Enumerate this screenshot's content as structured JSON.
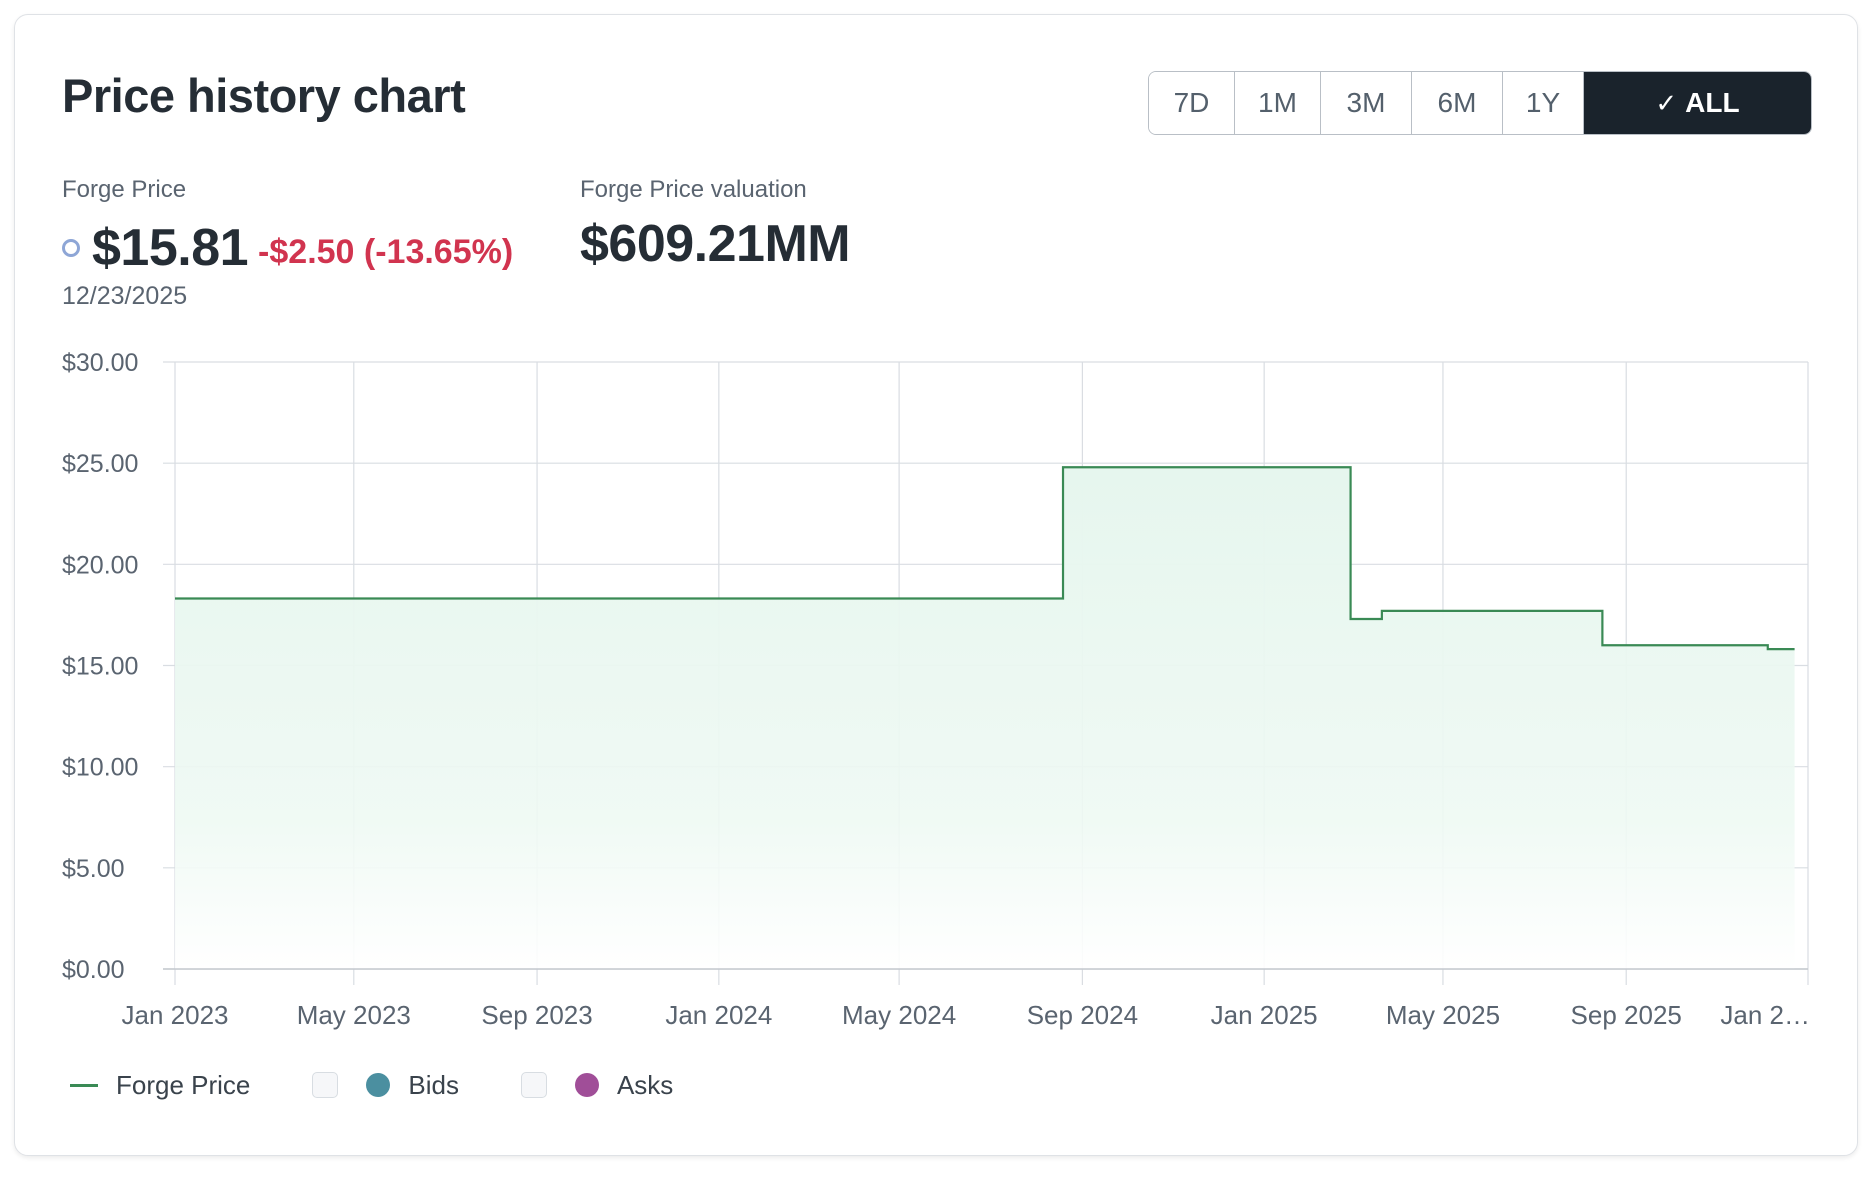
{
  "card": {
    "title": "Price history chart"
  },
  "range_buttons": [
    {
      "label": "7D",
      "active": false
    },
    {
      "label": "1M",
      "active": false
    },
    {
      "label": "3M",
      "active": false
    },
    {
      "label": "6M",
      "active": false
    },
    {
      "label": "1Y",
      "active": false
    },
    {
      "label": "ALL",
      "active": true,
      "icon": "check-icon"
    }
  ],
  "forge_price": {
    "label": "Forge Price",
    "value": "$15.81",
    "change": "-$2.50 (-13.65%)",
    "date": "12/23/2025",
    "marker_color": "#8ea6d6",
    "change_color": "#d1344f"
  },
  "valuation": {
    "label": "Forge Price valuation",
    "value": "$609.21MM"
  },
  "legend": {
    "forge_price": "Forge Price",
    "bids": "Bids",
    "asks": "Asks",
    "bids_color": "#4b8fa0",
    "asks_color": "#a04e98",
    "bids_checked": false,
    "asks_checked": false
  },
  "chart_data": {
    "type": "area",
    "step": true,
    "x_range": [
      "2023-01-01",
      "2025-12-23"
    ],
    "x_ticks": [
      {
        "date": "2023-01-01",
        "label": "Jan 2023"
      },
      {
        "date": "2023-05-01",
        "label": "May 2023"
      },
      {
        "date": "2023-09-01",
        "label": "Sep 2023"
      },
      {
        "date": "2024-01-01",
        "label": "Jan 2024"
      },
      {
        "date": "2024-05-01",
        "label": "May 2024"
      },
      {
        "date": "2024-09-01",
        "label": "Sep 2024"
      },
      {
        "date": "2025-01-01",
        "label": "Jan 2025"
      },
      {
        "date": "2025-05-01",
        "label": "May 2025"
      },
      {
        "date": "2025-09-01",
        "label": "Sep 2025"
      },
      {
        "date": "2026-01-01",
        "label": "Jan 2…"
      }
    ],
    "y_ticks": [
      {
        "value": 0,
        "label": "$0.00"
      },
      {
        "value": 5,
        "label": "$5.00"
      },
      {
        "value": 10,
        "label": "$10.00"
      },
      {
        "value": 15,
        "label": "$15.00"
      },
      {
        "value": 20,
        "label": "$20.00"
      },
      {
        "value": 25,
        "label": "$25.00"
      },
      {
        "value": 30,
        "label": "$30.00"
      }
    ],
    "ylim": [
      0,
      30
    ],
    "grid": true,
    "legend_position": "bottom-left",
    "series": [
      {
        "name": "Forge Price",
        "color": "#3a8a55",
        "fill_color": "#e8f7ef",
        "points": [
          {
            "date": "2023-01-01",
            "value": 18.31
          },
          {
            "date": "2024-08-19",
            "value": 24.8
          },
          {
            "date": "2025-02-28",
            "value": 17.3
          },
          {
            "date": "2025-03-21",
            "value": 17.7
          },
          {
            "date": "2025-08-16",
            "value": 16.0
          },
          {
            "date": "2025-12-05",
            "value": 15.81
          },
          {
            "date": "2025-12-23",
            "value": 15.81
          }
        ]
      }
    ]
  }
}
